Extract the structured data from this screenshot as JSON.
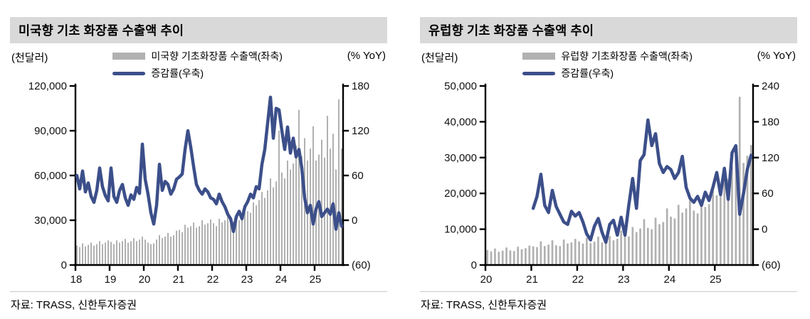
{
  "colors": {
    "accent_line": "#3c4f8a",
    "bar": "#b1b1b1",
    "title_bg": "#d9d9d9",
    "axis": "#000000"
  },
  "charts": [
    {
      "title": "미국향 기초 화장품 수출액 추이",
      "left_axis_unit": "(천달러)",
      "right_axis_unit": "(% YoY)",
      "legend": [
        {
          "type": "bar",
          "label": "미국향 기초화장품 수출액(좌축)"
        },
        {
          "type": "line",
          "label": "증감률(우축)"
        }
      ],
      "source": "자료: TRASS, 신한투자증권",
      "chart_data": {
        "type": "bar+line",
        "x_unit": "month",
        "x_start": "2018-01",
        "bar_series": "미국향 기초화장품 수출액(좌축)",
        "line_series": "증감률(우축)",
        "x_ticks": [
          {
            "label": "18",
            "month_index": 0
          },
          {
            "label": "19",
            "month_index": 12
          },
          {
            "label": "20",
            "month_index": 24
          },
          {
            "label": "21",
            "month_index": 36
          },
          {
            "label": "22",
            "month_index": 48
          },
          {
            "label": "23",
            "month_index": 60
          },
          {
            "label": "24",
            "month_index": 72
          },
          {
            "label": "25",
            "month_index": 84
          }
        ],
        "left_axis": {
          "tick_values": [
            0,
            30000,
            60000,
            90000,
            120000
          ],
          "tick_labels": [
            "0",
            "30,000",
            "60,000",
            "90,000",
            "120,000"
          ]
        },
        "right_axis": {
          "tick_values": [
            -60,
            0,
            60,
            120,
            180
          ],
          "tick_labels": [
            "(60)",
            "0",
            "60",
            "120",
            "180"
          ]
        },
        "bars": [
          13000,
          12000,
          14500,
          12500,
          13500,
          15000,
          13000,
          14000,
          16000,
          14000,
          15000,
          16500,
          15500,
          14000,
          16500,
          15000,
          16000,
          17500,
          15000,
          16000,
          18000,
          16000,
          17000,
          19000,
          17000,
          15000,
          14000,
          14500,
          17000,
          20000,
          18000,
          19000,
          21500,
          19000,
          20000,
          23000,
          23500,
          22000,
          27000,
          25000,
          26000,
          28500,
          25000,
          26000,
          30000,
          27000,
          28000,
          30500,
          28000,
          26000,
          31000,
          28500,
          30000,
          32500,
          28000,
          29000,
          33500,
          30000,
          32000,
          35500,
          36000,
          35000,
          42000,
          40000,
          43500,
          49000,
          45000,
          50000,
          58000,
          52000,
          56000,
          90000,
          62000,
          58000,
          70000,
          64000,
          68000,
          80000,
          104000,
          73000,
          85000,
          70000,
          78000,
          93000,
          70000,
          74000,
          84000,
          72000,
          100000,
          78000,
          88000,
          64000,
          111000,
          78000
        ],
        "line": [
          60,
          42,
          66,
          38,
          50,
          32,
          24,
          40,
          70,
          45,
          33,
          26,
          70,
          32,
          24,
          40,
          48,
          30,
          20,
          34,
          28,
          44,
          36,
          102,
          55,
          35,
          10,
          -5,
          20,
          75,
          40,
          52,
          48,
          35,
          42,
          55,
          58,
          62,
          95,
          120,
          98,
          72,
          48,
          40,
          35,
          42,
          38,
          30,
          28,
          22,
          35,
          25,
          18,
          8,
          2,
          -15,
          5,
          12,
          2,
          18,
          25,
          35,
          30,
          45,
          42,
          75,
          95,
          130,
          165,
          110,
          150,
          148,
          120,
          95,
          125,
          90,
          110,
          85,
          95,
          70,
          30,
          10,
          20,
          -5,
          15,
          25,
          5,
          10,
          15,
          8,
          22,
          -12,
          10,
          -8
        ]
      }
    },
    {
      "title": "유럽향 기초 화장품 수출액 추이",
      "left_axis_unit": "(천달러)",
      "right_axis_unit": "(% YoY)",
      "legend": [
        {
          "type": "bar",
          "label": "유럽향 기초화장품 수출액(좌축)"
        },
        {
          "type": "line",
          "label": "증감률(우축)"
        }
      ],
      "source": "자료: TRASS, 신한투자증권",
      "chart_data": {
        "type": "bar+line",
        "x_unit": "month",
        "x_start": "2020-01",
        "bar_series": "유럽향 기초화장품 수출액(좌축)",
        "line_series": "증감률(우축)",
        "x_ticks": [
          {
            "label": "20",
            "month_index": 0
          },
          {
            "label": "21",
            "month_index": 12
          },
          {
            "label": "22",
            "month_index": 24
          },
          {
            "label": "23",
            "month_index": 36
          },
          {
            "label": "24",
            "month_index": 48
          },
          {
            "label": "25",
            "month_index": 60
          }
        ],
        "left_axis": {
          "tick_values": [
            0,
            10000,
            20000,
            30000,
            40000,
            50000
          ],
          "tick_labels": [
            "0",
            "10,000",
            "20,000",
            "30,000",
            "40,000",
            "50,000"
          ]
        },
        "right_axis": {
          "tick_values": [
            -60,
            0,
            60,
            120,
            180,
            240
          ],
          "tick_labels": [
            "(60)",
            "0",
            "60",
            "120",
            "180",
            "240"
          ]
        },
        "bars": [
          4200,
          3800,
          4600,
          3700,
          4000,
          4900,
          4100,
          3900,
          5100,
          4400,
          4700,
          5400,
          5200,
          5000,
          6600,
          5300,
          5700,
          6900,
          5500,
          5300,
          7100,
          6000,
          6300,
          7300,
          6600,
          6000,
          7600,
          6100,
          6500,
          7900,
          6300,
          6100,
          8100,
          6900,
          7300,
          9600,
          8300,
          8000,
          10600,
          9200,
          10200,
          12800,
          10400,
          10000,
          13200,
          11400,
          12000,
          15800,
          13500,
          13000,
          16800,
          14600,
          15800,
          18900,
          15200,
          14400,
          18400,
          16200,
          17000,
          21500,
          19500,
          20500,
          26500,
          24000,
          27500,
          30000,
          47000,
          28500,
          30500,
          33500
        ],
        "line": [
          null,
          null,
          null,
          null,
          null,
          null,
          null,
          null,
          null,
          null,
          null,
          null,
          35,
          55,
          92,
          40,
          28,
          65,
          38,
          25,
          12,
          8,
          30,
          22,
          28,
          12,
          -8,
          -18,
          5,
          18,
          -5,
          -22,
          8,
          15,
          -10,
          20,
          -10,
          40,
          85,
          35,
          115,
          125,
          183,
          140,
          160,
          110,
          95,
          105,
          100,
          85,
          95,
          122,
          70,
          52,
          45,
          55,
          40,
          62,
          48,
          70,
          95,
          58,
          102,
          50,
          128,
          140,
          25,
          60,
          100,
          124
        ]
      }
    }
  ]
}
